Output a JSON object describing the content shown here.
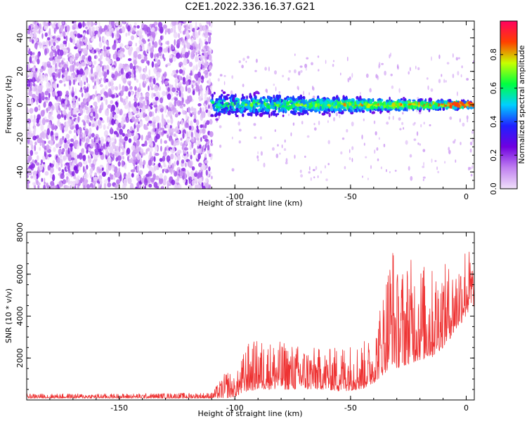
{
  "title": "C2E1.2022.336.16.37.G21",
  "chart_data": [
    {
      "type": "heatmap",
      "xlabel": "Height of straight line (km)",
      "ylabel": "Frequency (Hz)",
      "xlim": [
        -190,
        3.5
      ],
      "ylim": [
        -50,
        50
      ],
      "xticks": [
        -150,
        -100,
        -50,
        0
      ],
      "xtick_labels": [
        "-150",
        "-100",
        "-50",
        "0"
      ],
      "yticks": [
        -40,
        -20,
        0,
        20,
        40
      ],
      "ytick_labels": [
        "-40",
        "-20",
        "0",
        "20",
        "40"
      ],
      "colorbar": {
        "label": "Normalized spectral amplitude",
        "range": [
          0,
          1
        ],
        "ticks": [
          0.0,
          0.2,
          0.4,
          0.6,
          0.8
        ],
        "tick_labels": [
          "0.0",
          "0.2",
          "0.4",
          "0.6",
          "0.8"
        ],
        "colormap": [
          "#f0e0fa",
          "#c080f0",
          "#7000e0",
          "#2020ff",
          "#00d0ff",
          "#00ff40",
          "#c8ff00",
          "#ff4000",
          "#ff0060"
        ]
      },
      "regions": [
        {
          "name": "noise",
          "x_range": [
            -190,
            -110
          ],
          "y_range": [
            -50,
            50
          ],
          "amplitude_range": [
            0.0,
            0.2
          ]
        },
        {
          "name": "signal-band",
          "x_range": [
            -110,
            3.5
          ],
          "center_frequency": 0,
          "half_width": [
            7,
            2
          ],
          "amplitude_range": [
            0.2,
            0.9
          ]
        }
      ]
    },
    {
      "type": "line",
      "xlabel": "Height of straight line (km)",
      "ylabel": "SNR (10 * v/v)",
      "xlim": [
        -190,
        3.5
      ],
      "ylim": [
        0,
        8000
      ],
      "xticks": [
        -150,
        -100,
        -50,
        0
      ],
      "xtick_labels": [
        "-150",
        "-100",
        "-50",
        "0"
      ],
      "yticks": [
        2000,
        4000,
        6000,
        8000
      ],
      "ytick_labels": [
        "2000",
        "4000",
        "6000",
        "8000"
      ],
      "series": [
        {
          "color": "#ee3333",
          "envelope": {
            "x": [
              -190,
              -150,
              -110,
              -103,
              -100,
              -95,
              -90,
              -80,
              -70,
              -60,
              -55,
              -45,
              -40,
              -35,
              -32,
              -30,
              -25,
              -20,
              -15,
              -10,
              -5,
              0,
              3.5
            ],
            "low": [
              80,
              80,
              80,
              100,
              150,
              400,
              500,
              500,
              500,
              500,
              400,
              500,
              800,
              1300,
              1700,
              1500,
              1700,
              1900,
              2000,
              2500,
              3200,
              4000,
              4500
            ],
            "high": [
              300,
              300,
              350,
              1500,
              1000,
              2700,
              2900,
              2800,
              2600,
              2400,
              2700,
              2800,
              3000,
              6000,
              8000,
              6200,
              6800,
              6700,
              6300,
              6500,
              6500,
              7700,
              6500
            ]
          }
        }
      ]
    }
  ]
}
